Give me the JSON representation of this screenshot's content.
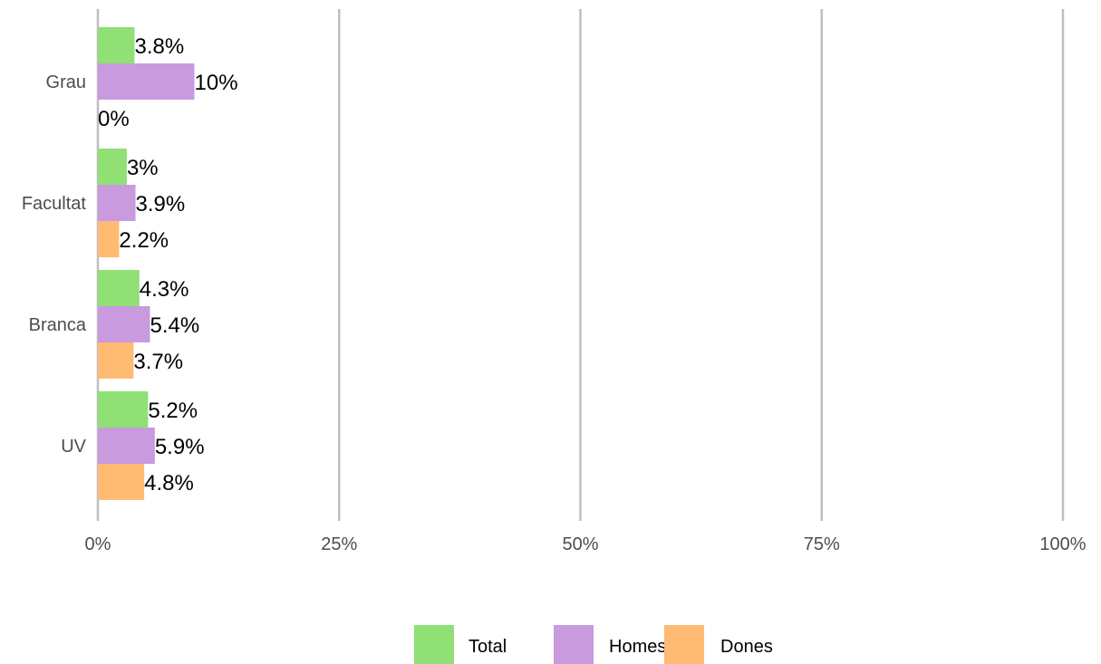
{
  "chart_data": {
    "type": "bar",
    "orientation": "horizontal",
    "title": "",
    "xlabel": "",
    "ylabel": "",
    "categories": [
      "Grau",
      "Facultat",
      "Branca",
      "UV"
    ],
    "series": [
      {
        "name": "Total",
        "color": "#90e075",
        "values": [
          3.8,
          3,
          4.3,
          5.2
        ],
        "labels": [
          "3.8%",
          "3%",
          "4.3%",
          "5.2%"
        ]
      },
      {
        "name": "Homes",
        "color": "#c99ade",
        "values": [
          10,
          3.9,
          5.4,
          5.9
        ],
        "labels": [
          "10%",
          "3.9%",
          "5.4%",
          "5.9%"
        ]
      },
      {
        "name": "Dones",
        "color": "#ffba73",
        "values": [
          0,
          2.2,
          3.7,
          4.8
        ],
        "labels": [
          "0%",
          "2.2%",
          "3.7%",
          "4.8%"
        ]
      }
    ],
    "xlim": [
      0,
      100
    ],
    "x_ticks": [
      0,
      25,
      50,
      75,
      100
    ],
    "x_tick_labels": [
      "0%",
      "25%",
      "50%",
      "75%",
      "100%"
    ],
    "grid": "vertical major",
    "legend_position": "bottom"
  }
}
